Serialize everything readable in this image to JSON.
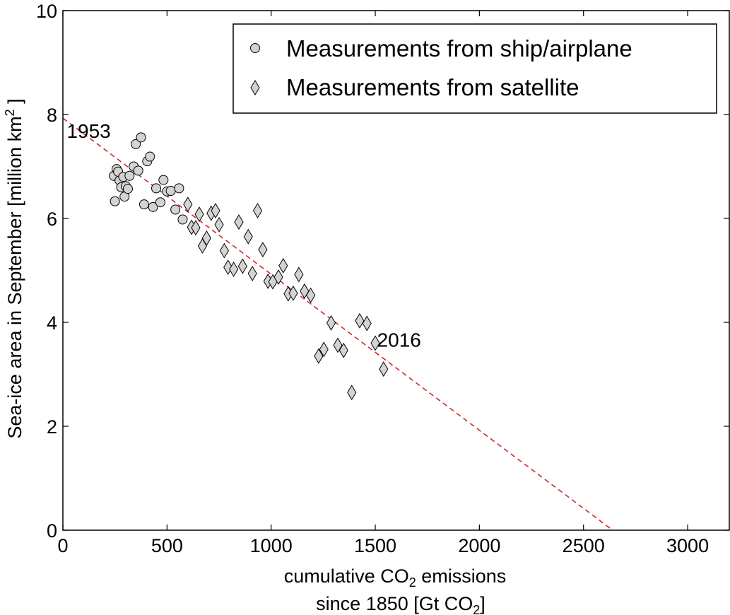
{
  "chart_data": {
    "type": "scatter",
    "title": "",
    "xlabel_line1_pre": "cumulative CO",
    "xlabel_line1_sub": "2",
    "xlabel_line1_post": " emissions",
    "xlabel_line2_pre": "since 1850 [Gt CO",
    "xlabel_line2_sub": "2",
    "xlabel_line2_post": "]",
    "ylabel_pre": "Sea-ice area in September [million km",
    "ylabel_sup": "2",
    "ylabel_post": " ]",
    "xlim": [
      0,
      3200
    ],
    "ylim": [
      0,
      10
    ],
    "xticks": [
      0,
      500,
      1000,
      1500,
      2000,
      2500,
      3000
    ],
    "xtick_labels": [
      "0",
      "500",
      "1000",
      "1500",
      "2000",
      "2500",
      "3000"
    ],
    "yticks": [
      0,
      2,
      4,
      6,
      8,
      10
    ],
    "ytick_labels": [
      "0",
      "2",
      "4",
      "6",
      "8",
      "10"
    ],
    "grid": false,
    "legend_position": "top-right",
    "series": [
      {
        "name": "Measurements from ship/airplane",
        "marker": "circle",
        "color": "#d3d3d3",
        "points": [
          [
            245,
            6.82
          ],
          [
            250,
            6.33
          ],
          [
            258,
            6.95
          ],
          [
            265,
            6.9
          ],
          [
            272,
            6.73
          ],
          [
            280,
            6.6
          ],
          [
            290,
            6.8
          ],
          [
            296,
            6.42
          ],
          [
            302,
            6.62
          ],
          [
            312,
            6.57
          ],
          [
            320,
            6.82
          ],
          [
            340,
            7.0
          ],
          [
            350,
            7.43
          ],
          [
            362,
            6.92
          ],
          [
            375,
            7.56
          ],
          [
            390,
            6.27
          ],
          [
            405,
            7.1
          ],
          [
            418,
            7.19
          ],
          [
            433,
            6.22
          ],
          [
            448,
            6.58
          ],
          [
            468,
            6.31
          ],
          [
            483,
            6.74
          ],
          [
            500,
            6.52
          ],
          [
            518,
            6.53
          ],
          [
            540,
            6.17
          ],
          [
            558,
            6.58
          ],
          [
            575,
            5.98
          ]
        ]
      },
      {
        "name": "Measurements from satellite",
        "marker": "diamond",
        "color": "#d3d3d3",
        "points": [
          [
            600,
            6.27
          ],
          [
            618,
            5.83
          ],
          [
            638,
            5.82
          ],
          [
            655,
            6.08
          ],
          [
            670,
            5.47
          ],
          [
            690,
            5.62
          ],
          [
            712,
            6.1
          ],
          [
            733,
            6.15
          ],
          [
            750,
            5.88
          ],
          [
            775,
            5.38
          ],
          [
            793,
            5.06
          ],
          [
            820,
            5.02
          ],
          [
            845,
            5.93
          ],
          [
            863,
            5.08
          ],
          [
            890,
            5.65
          ],
          [
            910,
            4.94
          ],
          [
            935,
            6.15
          ],
          [
            960,
            5.4
          ],
          [
            985,
            4.79
          ],
          [
            1008,
            4.78
          ],
          [
            1035,
            4.87
          ],
          [
            1058,
            5.09
          ],
          [
            1082,
            4.55
          ],
          [
            1106,
            4.56
          ],
          [
            1133,
            4.92
          ],
          [
            1160,
            4.6
          ],
          [
            1190,
            4.52
          ],
          [
            1228,
            3.35
          ],
          [
            1253,
            3.48
          ],
          [
            1288,
            3.99
          ],
          [
            1320,
            3.56
          ],
          [
            1348,
            3.46
          ],
          [
            1387,
            2.65
          ],
          [
            1425,
            4.03
          ],
          [
            1460,
            3.98
          ],
          [
            1500,
            3.6
          ],
          [
            1540,
            3.1
          ]
        ]
      }
    ],
    "trend_line": {
      "color": "#d62728",
      "style": "dashed",
      "x": [
        0,
        2640
      ],
      "y": [
        7.93,
        0
      ]
    },
    "annotations": [
      {
        "text": "1953",
        "x": 230,
        "y": 7.55
      },
      {
        "text": "2016",
        "x": 1720,
        "y": 3.53
      }
    ]
  }
}
